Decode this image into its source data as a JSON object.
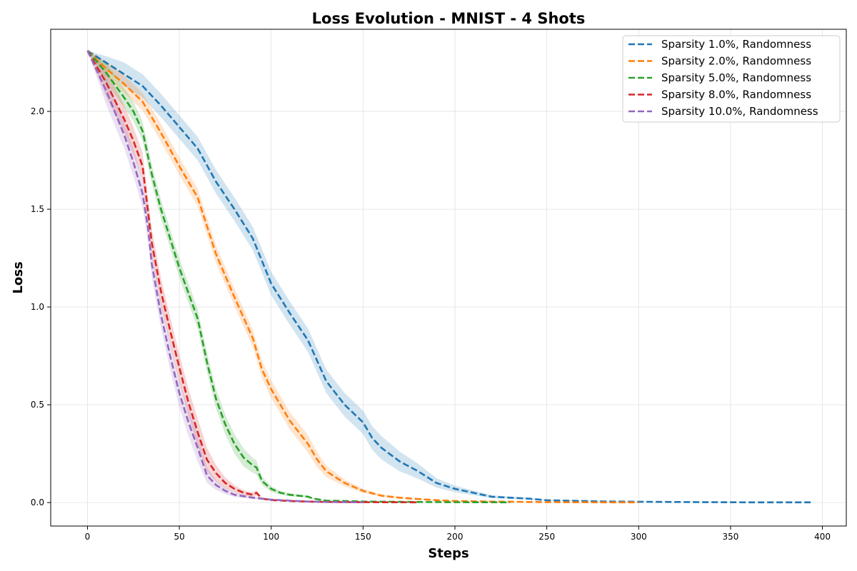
{
  "chart_data": {
    "type": "line",
    "title": "Loss Evolution - MNIST - 4 Shots",
    "xlabel": "Steps",
    "ylabel": "Loss",
    "xlim": [
      -20,
      413
    ],
    "ylim": [
      -0.12,
      2.42
    ],
    "xticks": [
      0,
      50,
      100,
      150,
      200,
      250,
      300,
      350,
      400
    ],
    "yticks": [
      0.0,
      0.5,
      1.0,
      1.5,
      2.0
    ],
    "grid": true,
    "legend_position": "top-right",
    "series": [
      {
        "name": "Sparsity 1.0%, Randomness",
        "color": "#1f77b4",
        "x": [
          0,
          10,
          20,
          30,
          40,
          50,
          60,
          70,
          80,
          90,
          100,
          110,
          120,
          130,
          140,
          150,
          155,
          160,
          170,
          180,
          190,
          200,
          210,
          215,
          220,
          230,
          240,
          250,
          260,
          270,
          280,
          290,
          300,
          320,
          340,
          360,
          380,
          394
        ],
        "y": [
          2.31,
          2.25,
          2.19,
          2.13,
          2.03,
          1.92,
          1.81,
          1.64,
          1.5,
          1.35,
          1.12,
          0.97,
          0.83,
          0.62,
          0.5,
          0.41,
          0.33,
          0.28,
          0.21,
          0.16,
          0.1,
          0.07,
          0.05,
          0.04,
          0.03,
          0.025,
          0.02,
          0.012,
          0.01,
          0.008,
          0.006,
          0.005,
          0.004,
          0.003,
          0.002,
          0.001,
          0.001,
          0.001
        ],
        "band": 0.06
      },
      {
        "name": "Sparsity 2.0%, Randomness",
        "color": "#ff7f0e",
        "x": [
          0,
          10,
          20,
          30,
          40,
          50,
          60,
          70,
          80,
          90,
          95,
          100,
          110,
          120,
          125,
          130,
          140,
          150,
          160,
          170,
          180,
          190,
          200,
          220,
          240,
          260,
          280,
          300
        ],
        "y": [
          2.31,
          2.22,
          2.14,
          2.05,
          1.89,
          1.72,
          1.56,
          1.27,
          1.05,
          0.84,
          0.68,
          0.58,
          0.42,
          0.3,
          0.22,
          0.16,
          0.1,
          0.06,
          0.035,
          0.025,
          0.018,
          0.012,
          0.008,
          0.005,
          0.003,
          0.002,
          0.001,
          0.001
        ],
        "band": 0.045
      },
      {
        "name": "Sparsity 5.0%, Randomness",
        "color": "#2ca02c",
        "x": [
          0,
          10,
          20,
          25,
          30,
          35,
          40,
          50,
          60,
          65,
          70,
          75,
          80,
          85,
          90,
          92,
          95,
          100,
          105,
          110,
          120,
          123,
          130,
          140,
          150,
          180,
          200,
          230
        ],
        "y": [
          2.31,
          2.2,
          2.07,
          2.0,
          1.9,
          1.68,
          1.5,
          1.2,
          0.94,
          0.72,
          0.53,
          0.4,
          0.3,
          0.23,
          0.19,
          0.18,
          0.11,
          0.07,
          0.05,
          0.04,
          0.03,
          0.02,
          0.01,
          0.008,
          0.005,
          0.003,
          0.002,
          0.001
        ],
        "band": 0.05
      },
      {
        "name": "Sparsity 8.0%, Randomness",
        "color": "#d62728",
        "x": [
          0,
          10,
          20,
          25,
          30,
          35,
          40,
          45,
          50,
          55,
          60,
          65,
          70,
          75,
          80,
          85,
          90,
          92,
          95,
          100,
          110,
          120,
          130,
          150,
          180
        ],
        "y": [
          2.31,
          2.15,
          1.96,
          1.85,
          1.72,
          1.33,
          1.08,
          0.88,
          0.69,
          0.51,
          0.36,
          0.22,
          0.15,
          0.1,
          0.07,
          0.05,
          0.04,
          0.05,
          0.02,
          0.013,
          0.008,
          0.005,
          0.003,
          0.002,
          0.001
        ],
        "band": 0.07
      },
      {
        "name": "Sparsity 10.0%, Randomness",
        "color": "#9467bd",
        "x": [
          0,
          10,
          20,
          25,
          30,
          33,
          35,
          40,
          45,
          50,
          55,
          60,
          65,
          70,
          75,
          80,
          90,
          100,
          110,
          120,
          130,
          150
        ],
        "y": [
          2.31,
          2.11,
          1.88,
          1.74,
          1.58,
          1.4,
          1.22,
          0.96,
          0.75,
          0.56,
          0.41,
          0.28,
          0.14,
          0.09,
          0.06,
          0.04,
          0.025,
          0.015,
          0.01,
          0.005,
          0.003,
          0.001
        ],
        "band": 0.07
      }
    ]
  }
}
